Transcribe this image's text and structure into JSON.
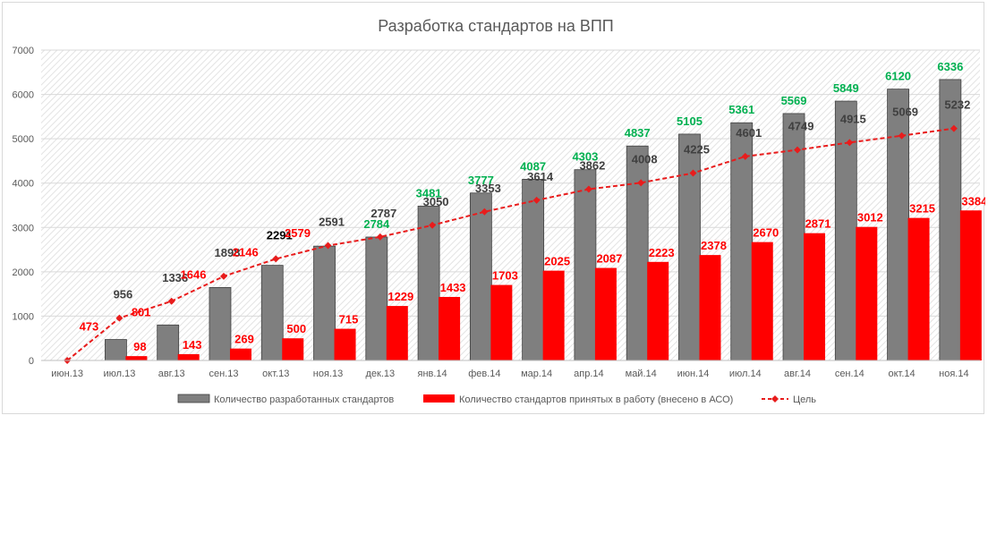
{
  "chart_data": {
    "type": "bar",
    "title": "Разработка стандартов на ВПП",
    "categories": [
      "июн.13",
      "июл.13",
      "авг.13",
      "сен.13",
      "окт.13",
      "ноя.13",
      "дек.13",
      "янв.14",
      "фев.14",
      "мар.14",
      "апр.14",
      "май.14",
      "июн.14",
      "июл.14",
      "авг.14",
      "сен.14",
      "окт.14",
      "ноя.14"
    ],
    "ylim": [
      0,
      7000
    ],
    "yticks": [
      0,
      1000,
      2000,
      3000,
      4000,
      5000,
      6000,
      7000
    ],
    "grid": true,
    "legend_position": "bottom",
    "series": [
      {
        "name": "Количество разработанных стандартов",
        "kind": "bar",
        "color": "#7f7f7f",
        "values": [
          0,
          473,
          801,
          1646,
          2146,
          2579,
          2784,
          3481,
          3777,
          4087,
          4303,
          4837,
          5105,
          5361,
          5569,
          5849,
          6120,
          6336
        ],
        "labels": [
          "",
          "473",
          "801",
          "1646",
          "2146",
          "2579",
          "2784",
          "3481",
          "3777",
          "4087",
          "4303",
          "4837",
          "5105",
          "5361",
          "5569",
          "5849",
          "6120",
          "6336"
        ]
      },
      {
        "name": "Количество стандартов принятых в работу (внесено в АСО)",
        "kind": "bar",
        "color": "#ff0000",
        "values": [
          0,
          98,
          143,
          269,
          500,
          715,
          1229,
          1433,
          1703,
          2025,
          2087,
          2223,
          2378,
          2670,
          2871,
          3012,
          3215,
          3384
        ],
        "labels": [
          "",
          "98",
          "143",
          "269",
          "500",
          "715",
          "1229",
          "1433",
          "1703",
          "2025",
          "2087",
          "2223",
          "2378",
          "2670",
          "2871",
          "3012",
          "3215",
          "3384"
        ]
      },
      {
        "name": "Цель",
        "kind": "line",
        "color": "#e81c1c",
        "values": [
          0,
          956,
          1336,
          1898,
          2291,
          2591,
          2787,
          3050,
          3353,
          3614,
          3862,
          4008,
          4225,
          4601,
          4749,
          4915,
          5069,
          5232
        ],
        "labels": [
          "",
          "956",
          "1336",
          "1898",
          "2291",
          "2591",
          "2787",
          "3050",
          "3353",
          "3614",
          "3862",
          "4008",
          "4225",
          "4601",
          "4749",
          "4915",
          "5069",
          "5232"
        ]
      }
    ],
    "colors": {
      "label_green": "#00b050",
      "label_dark": "#404040",
      "label_red": "#ff0000",
      "label_black": "#000000",
      "grid_line": "#d9d9d9",
      "hatch": "#e6e6e6"
    }
  }
}
